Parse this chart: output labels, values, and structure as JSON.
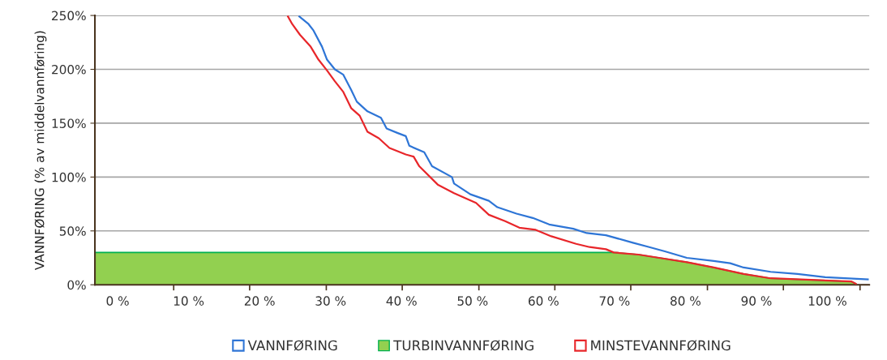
{
  "chart_data": {
    "type": "line",
    "ylabel": "VANNFØRING (% av middelvannføring)",
    "xlim": [
      -3.2,
      105.9
    ],
    "ylim": [
      0,
      250
    ],
    "xticks": [
      {
        "value": 0,
        "label": "0 %"
      },
      {
        "value": 10,
        "label": "10 %"
      },
      {
        "value": 20,
        "label": "20 %"
      },
      {
        "value": 30,
        "label": "30 %"
      },
      {
        "value": 40,
        "label": "40 %"
      },
      {
        "value": 50,
        "label": "50 %"
      },
      {
        "value": 60,
        "label": "60 %"
      },
      {
        "value": 70,
        "label": "70 %"
      },
      {
        "value": 80,
        "label": "80 %"
      },
      {
        "value": 90,
        "label": "90 %"
      },
      {
        "value": 100,
        "label": "100 %"
      },
      {
        "value": 7.9,
        "label": null
      },
      {
        "value": 18.6,
        "label": null
      },
      {
        "value": 29.4,
        "label": null
      },
      {
        "value": 40.1,
        "label": null
      },
      {
        "value": 50.9,
        "label": null
      },
      {
        "value": 61.6,
        "label": null
      },
      {
        "value": 72.3,
        "label": null
      },
      {
        "value": 83.1,
        "label": null
      },
      {
        "value": 93.8,
        "label": null
      },
      {
        "value": 104.6,
        "label": null
      }
    ],
    "yticks": [
      {
        "value": 0,
        "label": "0%"
      },
      {
        "value": 50,
        "label": "50%"
      },
      {
        "value": 100,
        "label": "100%"
      },
      {
        "value": 150,
        "label": "150%"
      },
      {
        "value": 200,
        "label": "200%"
      },
      {
        "value": 250,
        "label": "250%"
      }
    ],
    "grid": "y",
    "legend": "bottom",
    "marker": "none",
    "line_style": "solid",
    "series": [
      {
        "name": "VANNFØRING",
        "color": "#2e75d6",
        "x": [
          25.6,
          26.9,
          27.6,
          28.8,
          29.5,
          30.6,
          31.8,
          32.9,
          33.7,
          35.2,
          37.1,
          37.9,
          39.4,
          40.6,
          41.1,
          43.2,
          44.3,
          47.1,
          47.4,
          49.7,
          52.3,
          53.5,
          56.2,
          58.5,
          60.8,
          64.2,
          66.1,
          68.8,
          72.6,
          74.9,
          77.1,
          80.2,
          84.0,
          86.3,
          88.2,
          92.0,
          95.8,
          99.7,
          105.7
        ],
        "values": [
          249,
          242,
          236,
          221,
          209,
          200,
          195,
          181,
          170,
          161,
          155,
          145,
          141,
          138,
          129,
          123,
          110,
          100,
          94,
          84,
          78,
          72,
          66,
          62,
          56,
          52,
          48,
          46,
          39,
          35,
          31,
          25,
          22,
          20,
          16,
          12,
          10,
          7,
          5
        ]
      },
      {
        "name": "TURBINVANNFØRING",
        "type": "area",
        "color": "#92d050",
        "x": [
          -3.2,
          69.9,
          73.4,
          76.3,
          80.2,
          84.0,
          88.2,
          92.0,
          97.7,
          103.4,
          104.0
        ],
        "values": [
          30,
          30,
          28,
          25,
          21,
          16,
          10,
          6,
          4.5,
          3,
          1
        ]
      },
      {
        "name": "MINSTEVANNFØRING",
        "color": "#e8262a",
        "x": [
          24.0,
          24.6,
          25.7,
          27.2,
          28.3,
          29.5,
          30.6,
          31.8,
          32.9,
          34.1,
          35.2,
          36.8,
          38.3,
          40.6,
          41.7,
          42.5,
          45.1,
          47.4,
          50.5,
          52.3,
          54.6,
          56.6,
          58.9,
          61.1,
          64.6,
          66.5,
          68.8,
          69.9,
          73.4,
          76.3,
          80.2,
          84.0,
          88.2,
          92.0,
          97.7,
          103.4,
          104.0
        ],
        "values": [
          249,
          242,
          232,
          221,
          209,
          199,
          189,
          179,
          164,
          157,
          142,
          136,
          127,
          121,
          119,
          110,
          93,
          85,
          76,
          65,
          59,
          53,
          51,
          45,
          38,
          35,
          33,
          30,
          28,
          25,
          21,
          16,
          10,
          6,
          4.5,
          3,
          1
        ]
      }
    ]
  }
}
